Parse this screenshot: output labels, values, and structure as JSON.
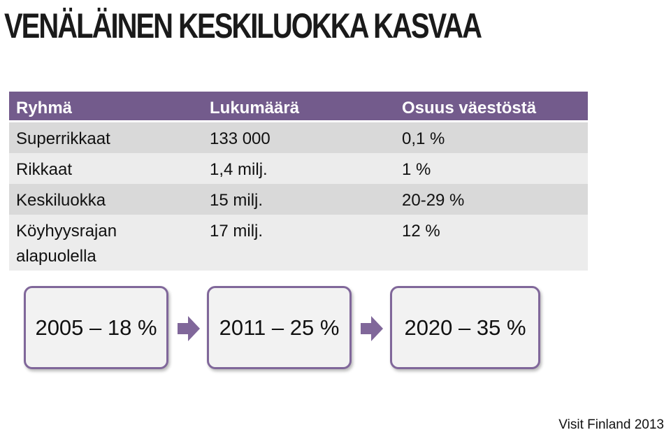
{
  "title": "VENÄLÄINEN KESKILUOKKA KASVAA",
  "table": {
    "headers": [
      "Ryhmä",
      "Lukumäärä",
      "Osuus väestöstä"
    ],
    "rows": [
      [
        "Superrikkaat",
        "133 000",
        "0,1 %"
      ],
      [
        "Rikkaat",
        "1,4 milj.",
        "1 %"
      ],
      [
        "Keskiluokka",
        "15 milj.",
        "20-29 %"
      ],
      [
        "Köyhyysrajan alapuolella",
        "17 milj.",
        "12 %"
      ]
    ]
  },
  "timeline": [
    "2005 – 18 %",
    "2011 – 25 %",
    "2020 – 35 %"
  ],
  "credit": "Visit Finland 2013",
  "colors": {
    "header_bg": "#735b8c",
    "box_border": "#80679a",
    "arrow": "#80679a",
    "row_dark": "#d9d9d9",
    "row_light": "#ececec"
  }
}
